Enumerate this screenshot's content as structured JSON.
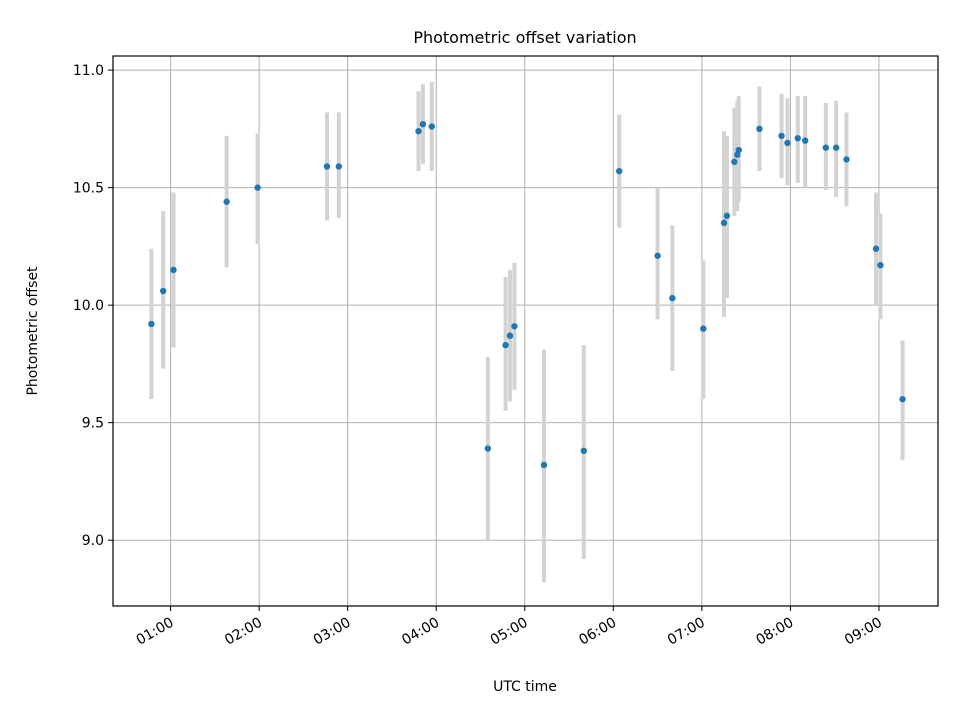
{
  "chart_data": {
    "type": "scatter",
    "title": "Photometric offset variation",
    "xlabel": "UTC time",
    "ylabel": "Photometric offset",
    "x_unit": "UTC time (HH:MM)",
    "xlim": [
      "00:21",
      "09:40"
    ],
    "ylim": [
      8.72,
      11.06
    ],
    "x_ticks": [
      "01:00",
      "02:00",
      "03:00",
      "04:00",
      "05:00",
      "06:00",
      "07:00",
      "08:00",
      "09:00"
    ],
    "y_ticks": [
      9.0,
      9.5,
      10.0,
      10.5,
      11.0
    ],
    "y_tick_labels": [
      "9.0",
      "9.5",
      "10.0",
      "10.5",
      "11.0"
    ],
    "grid": true,
    "legend": "none",
    "colors": {
      "points": "#1f77b4",
      "error_bars": "#d3d3d3",
      "grid": "#b0b0b0"
    },
    "series": [
      {
        "points": [
          {
            "x": "00:47",
            "y": 9.92,
            "ylo": 9.6,
            "yhi": 10.24
          },
          {
            "x": "00:55",
            "y": 10.06,
            "ylo": 9.73,
            "yhi": 10.4
          },
          {
            "x": "01:02",
            "y": 10.15,
            "ylo": 9.82,
            "yhi": 10.48
          },
          {
            "x": "01:38",
            "y": 10.44,
            "ylo": 10.16,
            "yhi": 10.72
          },
          {
            "x": "01:59",
            "y": 10.5,
            "ylo": 10.26,
            "yhi": 10.73
          },
          {
            "x": "02:46",
            "y": 10.59,
            "ylo": 10.36,
            "yhi": 10.82
          },
          {
            "x": "02:54",
            "y": 10.59,
            "ylo": 10.37,
            "yhi": 10.82
          },
          {
            "x": "03:48",
            "y": 10.74,
            "ylo": 10.57,
            "yhi": 10.91
          },
          {
            "x": "03:51",
            "y": 10.77,
            "ylo": 10.6,
            "yhi": 10.94
          },
          {
            "x": "03:57",
            "y": 10.76,
            "ylo": 10.57,
            "yhi": 10.95
          },
          {
            "x": "04:35",
            "y": 9.39,
            "ylo": 9.0,
            "yhi": 9.78
          },
          {
            "x": "04:47",
            "y": 9.83,
            "ylo": 9.55,
            "yhi": 10.12
          },
          {
            "x": "04:50",
            "y": 9.87,
            "ylo": 9.59,
            "yhi": 10.15
          },
          {
            "x": "04:53",
            "y": 9.91,
            "ylo": 9.64,
            "yhi": 10.18
          },
          {
            "x": "05:13",
            "y": 9.32,
            "ylo": 8.82,
            "yhi": 9.81
          },
          {
            "x": "05:40",
            "y": 9.38,
            "ylo": 8.92,
            "yhi": 9.83
          },
          {
            "x": "06:04",
            "y": 10.57,
            "ylo": 10.33,
            "yhi": 10.81
          },
          {
            "x": "06:30",
            "y": 10.21,
            "ylo": 9.94,
            "yhi": 10.5
          },
          {
            "x": "06:40",
            "y": 10.03,
            "ylo": 9.72,
            "yhi": 10.34
          },
          {
            "x": "07:01",
            "y": 9.9,
            "ylo": 9.6,
            "yhi": 10.19
          },
          {
            "x": "07:15",
            "y": 10.35,
            "ylo": 9.95,
            "yhi": 10.74
          },
          {
            "x": "07:17",
            "y": 10.38,
            "ylo": 10.03,
            "yhi": 10.72
          },
          {
            "x": "07:22",
            "y": 10.61,
            "ylo": 10.38,
            "yhi": 10.84
          },
          {
            "x": "07:24",
            "y": 10.64,
            "ylo": 10.4,
            "yhi": 10.87
          },
          {
            "x": "07:25",
            "y": 10.66,
            "ylo": 10.44,
            "yhi": 10.89
          },
          {
            "x": "07:39",
            "y": 10.75,
            "ylo": 10.57,
            "yhi": 10.93
          },
          {
            "x": "07:54",
            "y": 10.72,
            "ylo": 10.54,
            "yhi": 10.9
          },
          {
            "x": "07:58",
            "y": 10.69,
            "ylo": 10.51,
            "yhi": 10.88
          },
          {
            "x": "08:05",
            "y": 10.71,
            "ylo": 10.52,
            "yhi": 10.89
          },
          {
            "x": "08:10",
            "y": 10.7,
            "ylo": 10.5,
            "yhi": 10.89
          },
          {
            "x": "08:24",
            "y": 10.67,
            "ylo": 10.49,
            "yhi": 10.86
          },
          {
            "x": "08:31",
            "y": 10.67,
            "ylo": 10.46,
            "yhi": 10.87
          },
          {
            "x": "08:38",
            "y": 10.62,
            "ylo": 10.42,
            "yhi": 10.82
          },
          {
            "x": "08:58",
            "y": 10.24,
            "ylo": 10.0,
            "yhi": 10.48
          },
          {
            "x": "09:01",
            "y": 10.17,
            "ylo": 9.94,
            "yhi": 10.39
          },
          {
            "x": "09:16",
            "y": 9.6,
            "ylo": 9.34,
            "yhi": 9.85
          }
        ]
      }
    ]
  }
}
